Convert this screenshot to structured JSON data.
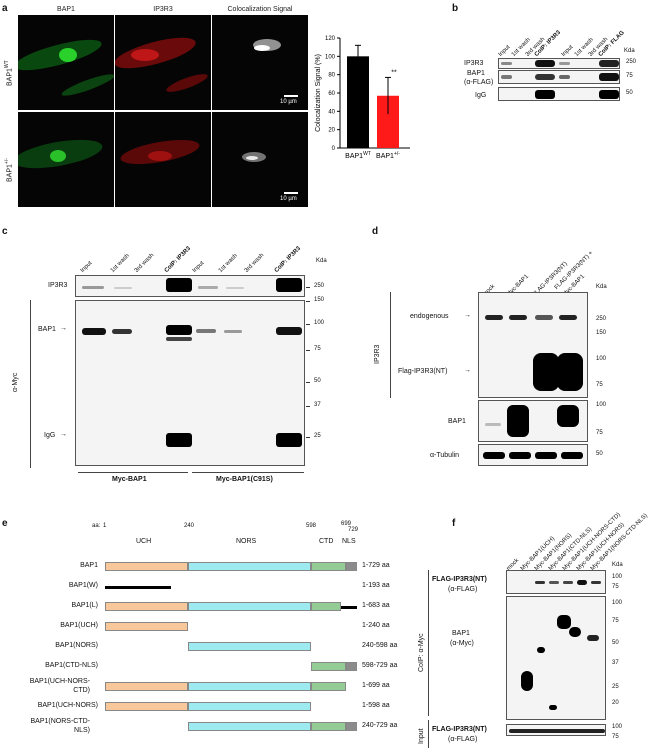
{
  "panel_a": {
    "label": "a",
    "col_titles": [
      "BAP1",
      "IP3R3",
      "Colocalization Signal"
    ],
    "row_labels": [
      "BAP1",
      "BAP1"
    ],
    "row_sups": [
      "WT",
      "+/-"
    ],
    "scale_bar": "10 µm",
    "chart_data": {
      "type": "bar",
      "categories": [
        "BAP1WT",
        "BAP1+/-"
      ],
      "category_display": [
        [
          "BAP1",
          "WT"
        ],
        [
          "BAP1",
          "+/-"
        ]
      ],
      "values": [
        100,
        57
      ],
      "errors": [
        12,
        20
      ],
      "colors": [
        "#000000",
        "#ff1a1a"
      ],
      "ylabel": "Colocalization Signal (%)",
      "ylim": [
        0,
        120
      ],
      "yticks": [
        "0",
        "20",
        "40",
        "60",
        "80",
        "100",
        "120"
      ],
      "significance": "**"
    }
  },
  "panel_b": {
    "label": "b",
    "lanes": [
      "Input",
      "1st wash",
      "3rd wash",
      "CoIP: IP3R3",
      "Input",
      "1st wash",
      "3rd wash",
      "CoIP: FLAG"
    ],
    "rows": [
      "IP3R3",
      "BAP1",
      "(α-FLAG)",
      "IgG"
    ],
    "unit": "Kda",
    "markers": [
      "250",
      "75",
      "50"
    ]
  },
  "panel_c": {
    "label": "c",
    "lanes": [
      "Input",
      "1st wash",
      "3rd wash",
      "CoIP: IP3R3",
      "Input",
      "1st wash",
      "3rd wash",
      "CoIP: IP3R3"
    ],
    "left_labels": [
      "IP3R3",
      "BAP1",
      "IgG"
    ],
    "side_label": "α-Myc",
    "unit": "Kda",
    "markers": [
      "250",
      "150",
      "100",
      "75",
      "50",
      "37",
      "25"
    ],
    "groups": [
      "Myc-BAP1",
      "Myc-BAP1(C91S)"
    ]
  },
  "panel_d": {
    "label": "d",
    "lanes": [
      "mock",
      "Myc-BAP1",
      "FLAG-IP3R3(NT)",
      "FLAG-IP3R3(NT) +",
      "Myc-BAP1"
    ],
    "side_label": "IP3R3",
    "labels": [
      "endogenous",
      "Flag-IP3R3(NT)",
      "BAP1",
      "α-Tubulin"
    ],
    "unit": "Kda",
    "markers_top": [
      "250",
      "150",
      "100",
      "75"
    ],
    "markers_bap1": [
      "100",
      "75"
    ],
    "markers_tub": [
      "50"
    ]
  },
  "panel_e": {
    "label": "e",
    "aa_prefix": "aa:",
    "positions": [
      "1",
      "240",
      "598",
      "699",
      "729"
    ],
    "domains": [
      "UCH",
      "NORS",
      "CTD",
      "NLS"
    ],
    "constructs": [
      {
        "name": "BAP1",
        "range": "1-729 aa"
      },
      {
        "name": "BAP1(W)",
        "range": "1-193 aa"
      },
      {
        "name": "BAP1(L)",
        "range": "1-683 aa"
      },
      {
        "name": "BAP1(UCH)",
        "range": "1-240 aa"
      },
      {
        "name": "BAP1(NORS)",
        "range": "240-598 aa"
      },
      {
        "name": "BAP1(CTD-NLS)",
        "range": "598-729 aa"
      },
      {
        "name": "BAP1(UCH-NORS-",
        "name2": "CTD)",
        "range": "1-699 aa"
      },
      {
        "name": "BAP1(UCH-NORS)",
        "range": "1-598 aa"
      },
      {
        "name": "BAP1(NORS-CTD-",
        "name2": "NLS)",
        "range": "240-729 aa"
      }
    ]
  },
  "panel_f": {
    "label": "f",
    "lanes": [
      "mock",
      "Myc-BAP1(UCH)",
      "Myc-BAP1(NORS)",
      "Myc-BAP1(CTD-NLS)",
      "Myc-BAP1(UCH-NORS-CTD)",
      "Myc-BAP1(UCH-NORS)",
      "Myc-BAP1(NORS-CTD-NLS)"
    ],
    "labels": [
      "FLAG-IP3R3(NT)",
      "(α-FLAG)",
      "BAP1",
      "(α-Myc)",
      "FLAG-IP3R3(NT)",
      "(α-FLAG)"
    ],
    "side_coip": "CoIP: α-Myc",
    "side_input": "Input",
    "unit": "Kda",
    "markers_top": [
      "100",
      "75"
    ],
    "markers_mid": [
      "100",
      "75",
      "50",
      "37",
      "25",
      "20"
    ],
    "markers_bot": [
      "100",
      "75"
    ]
  }
}
